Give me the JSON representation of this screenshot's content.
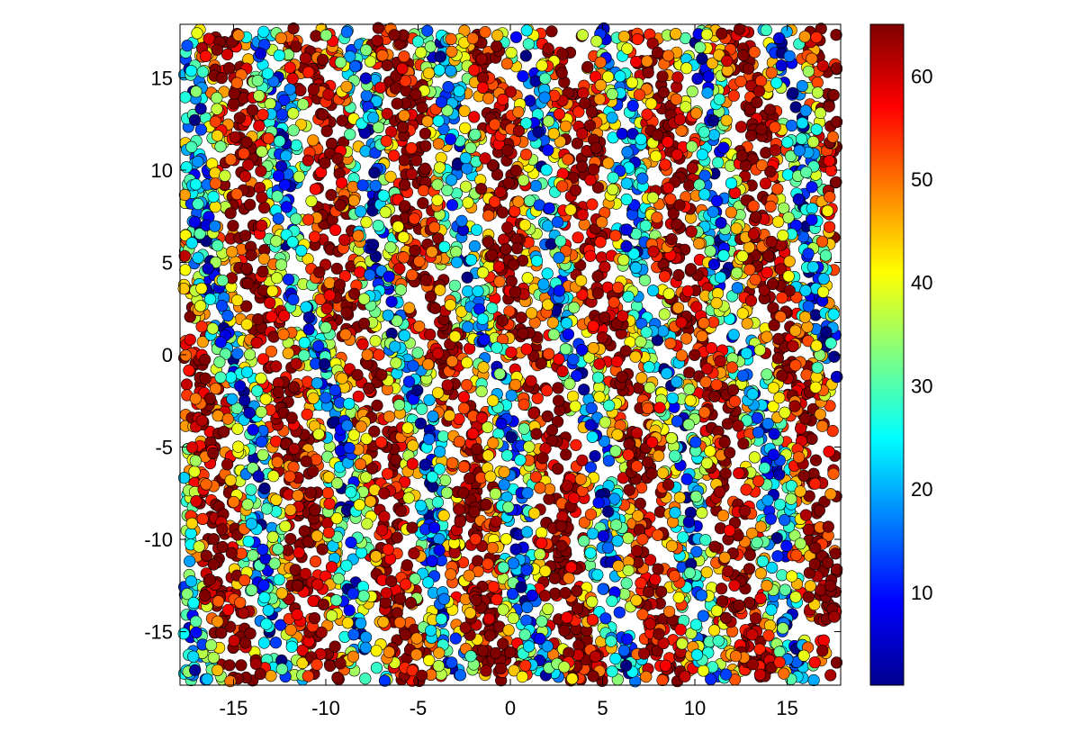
{
  "chart_data": {
    "type": "scatter",
    "title": "",
    "xlabel": "",
    "ylabel": "",
    "xlim": [
      -17.9,
      17.9
    ],
    "ylim": [
      -17.9,
      17.9
    ],
    "x_ticks": [
      -15,
      -10,
      -5,
      0,
      5,
      10,
      15
    ],
    "x_tick_labels": [
      "-15",
      "-10",
      "-5",
      "0",
      "5",
      "10",
      "15"
    ],
    "y_ticks": [
      15,
      10,
      5,
      0,
      -5,
      -10,
      -15
    ],
    "y_tick_labels": [
      "15",
      "10",
      "5",
      "0",
      "-5",
      "-10",
      "-15"
    ],
    "grid": false,
    "marker": "circle",
    "marker_edge_color": "#000000",
    "colormap": "jet",
    "colorbar": {
      "range": [
        1,
        65
      ],
      "ticks": [
        10,
        20,
        30,
        40,
        50,
        60
      ],
      "tick_labels": [
        "10",
        "20",
        "30",
        "40",
        "50",
        "60"
      ]
    },
    "color_value_range": [
      1,
      65
    ],
    "point_count_approx": 6000,
    "notes": "Dense scatter of ~6000 points uniformly covering the square; color value (1-65) forms vertical streak patterns. Individual points cannot be read; the rendering script fills the region with points in the stated range."
  }
}
